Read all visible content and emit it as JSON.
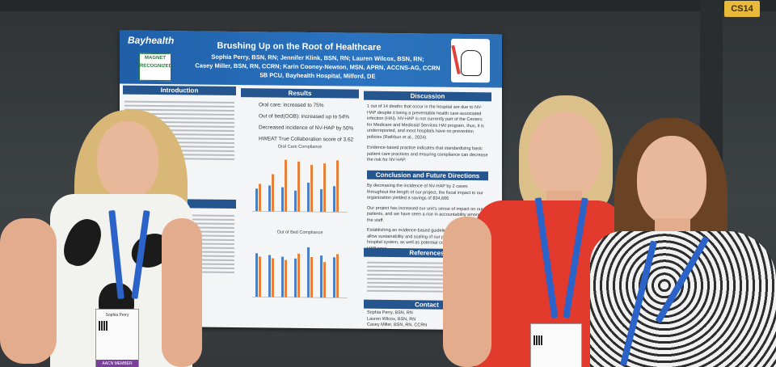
{
  "booth": {
    "sign": "CS14"
  },
  "poster": {
    "logo": "Bayhealth",
    "magnet": "MAGNET RECOGNIZED",
    "title": "Brushing Up on the Root of Healthcare",
    "authors": [
      "Sophia Perry, BSN, RN; Jennifer Klink, BSN, RN; Lauren Wilcox, BSN, RN;",
      "Casey Miller, BSN, RN, CCRN; Karin Cooney-Newton, MSN, APRN, ACCNS-AG, CCRN",
      "5B PCU, Bayhealth Hospital, Milford, DE"
    ],
    "sections": {
      "introduction": "Introduction",
      "results": "Results",
      "discussion": "Discussion",
      "conclusion": "Conclusion and Future Directions",
      "references": "References",
      "contact": "Contact"
    },
    "results_items": [
      "Oral care: increased to 75%",
      "Out of bed(OOB): increased up to 54%",
      "Decreased incidence of NV-HAP by 50%",
      "HWEAT True Collaboration score of 3.62"
    ],
    "chart_titles": {
      "oral": "Oral Care Compliance",
      "oob": "Out of Bed Compliance"
    },
    "discussion_items": [
      "1 out of 14 deaths that occur in the hospital are due to NV-HAP despite it being a preventable health care-associated infection (HAI). NV-HAP is not currently part of the Centers for Medicare and Medicaid Services HAI program, thus, it is underreported, and most hospitals have no prevention policies (Rathbun et al., 2024)",
      "Evidence-based practice indicates that standardizing basic patient care practices and ensuring compliance can decrease the risk for NV-HAP."
    ],
    "conclusion_items": [
      "By decreasing the incidence of NV-HAP by 2 cases throughout the length of our project, the fiscal impact to our organization yielded a savings of $34,666",
      "Our project has increased our unit's sense of impact on our patients, and we have seen a rise in accountability among the staff.",
      "Establishing an evidence-based guideline for NV-HAP will allow sustainability and scaling of our project throughout the hospital system, as well as potential cost savings of $1 NV-HAP case."
    ],
    "contact_lines": [
      "Sophia Perry, BSN, RN",
      "Lauren Wilcox, BSN, RN",
      "Casey Miller, BSN, RN, CCRN"
    ]
  },
  "badges": {
    "left_stripe": "AACN MEMBER",
    "left_name": "Sophia Perry"
  },
  "colors": {
    "poster_blue": "#2a73c0",
    "bar_blue": "#4b7fc6",
    "bar_orange": "#e8823a",
    "badge_purple": "#7a3f9b"
  }
}
